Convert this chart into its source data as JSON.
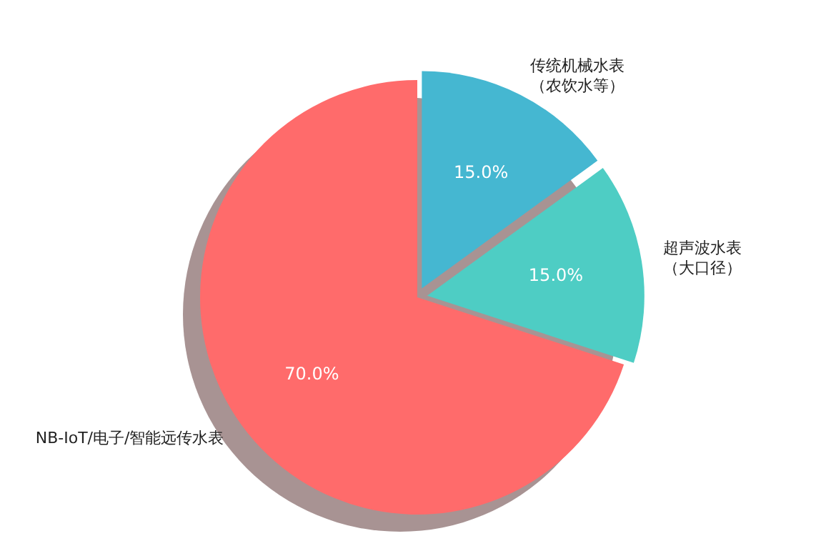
{
  "chart_data": {
    "type": "pie",
    "categories": [
      "NB-IoT/电子/智能远传水表",
      "超声波水表（大口径）",
      "传统机械水表（农饮水等）"
    ],
    "values": [
      70,
      15,
      15
    ],
    "colors": [
      "#ff6b6b",
      "#4ecdc4",
      "#45b7d1"
    ],
    "value_labels": [
      "70.0%",
      "15.0%",
      "15.0%"
    ]
  }
}
